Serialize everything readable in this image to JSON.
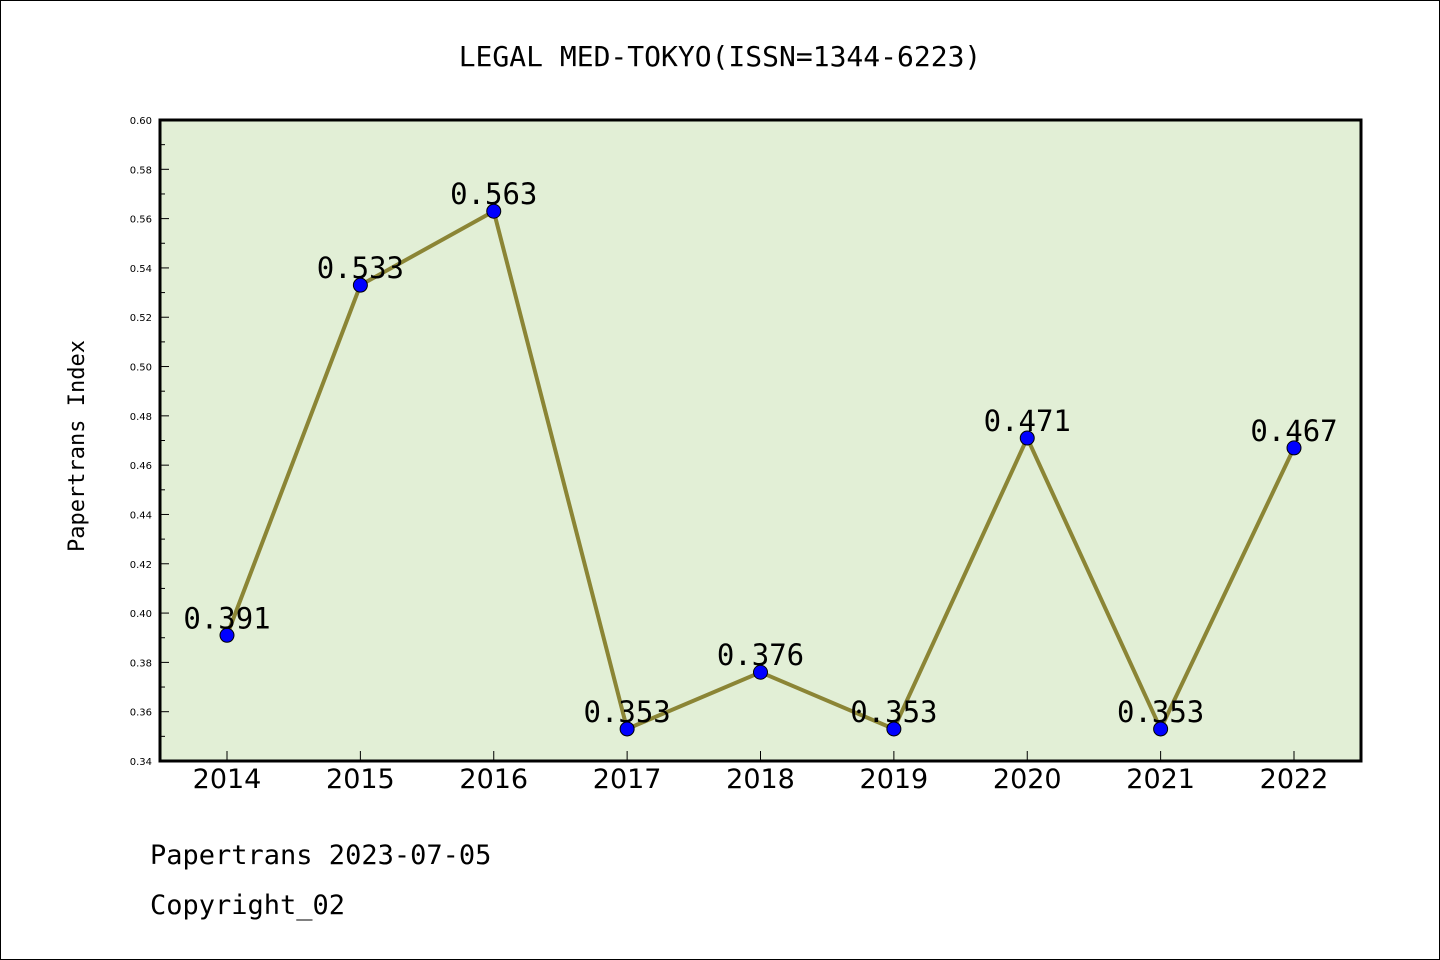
{
  "chart_data": {
    "type": "line",
    "title": "LEGAL MED-TOKYO(ISSN=1344-6223)",
    "xlabel": "",
    "ylabel": "Papertrans Index",
    "categories": [
      "2014",
      "2015",
      "2016",
      "2017",
      "2018",
      "2019",
      "2020",
      "2021",
      "2022"
    ],
    "series": [
      {
        "values": [
          0.391,
          0.533,
          0.563,
          0.353,
          0.376,
          0.353,
          0.471,
          0.353,
          0.467
        ],
        "data_labels": [
          "0.391",
          "0.533",
          "0.563",
          "0.353",
          "0.376",
          "0.353",
          "0.471",
          "0.353",
          "0.467"
        ]
      }
    ],
    "ylim": [
      0.34,
      0.6
    ],
    "yticks": [
      "0.34",
      "0.36",
      "0.38",
      "0.40",
      "0.42",
      "0.44",
      "0.46",
      "0.48",
      "0.50",
      "0.52",
      "0.54",
      "0.56",
      "0.58",
      "0.60"
    ],
    "grid": false,
    "colors": {
      "plot_background": "#e2efd6",
      "line": "#8b8535",
      "marker": "#0000ff"
    }
  },
  "footer": {
    "line1": "Papertrans 2023-07-05",
    "line2": "Copyright_02"
  }
}
